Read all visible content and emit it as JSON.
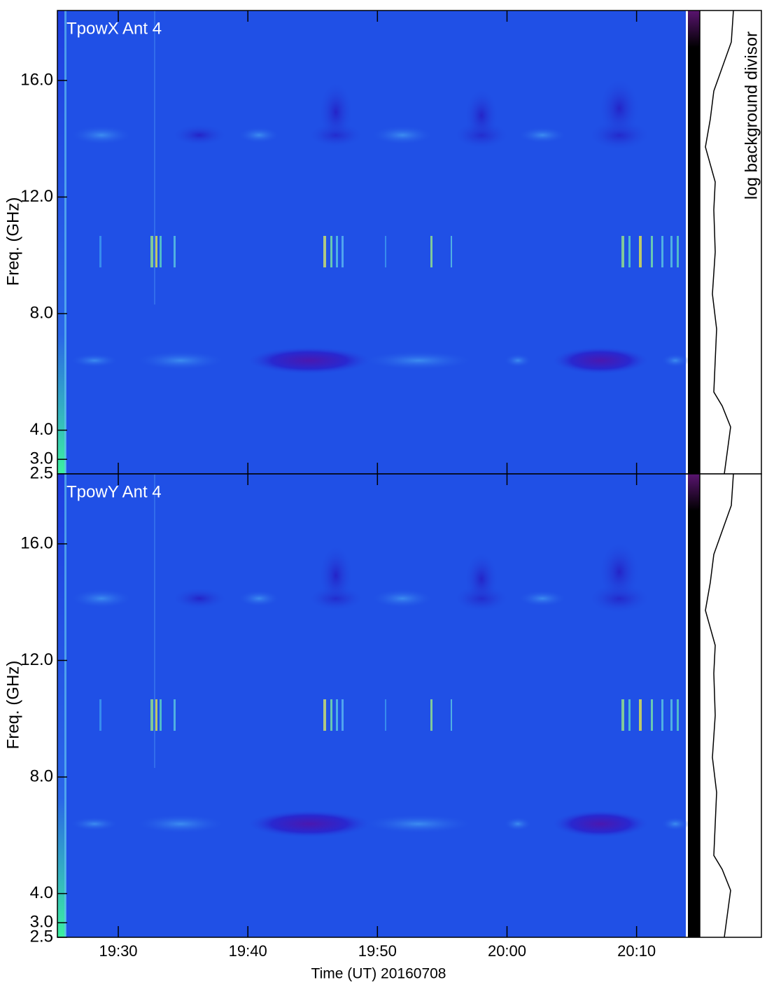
{
  "chart_data": [
    {
      "type": "spectrogram",
      "title": "TpowX Ant 4",
      "ylabel": "Freq. (GHz)",
      "side_label": "log background divisor",
      "ylim": [
        2.5,
        18.4
      ],
      "yticks": [
        {
          "value": 2.5,
          "label": "2.5"
        },
        {
          "value": 3,
          "label": "3.0"
        },
        {
          "value": 4,
          "label": "4.0"
        },
        {
          "value": 8,
          "label": "8.0"
        },
        {
          "value": 12,
          "label": "12.0"
        },
        {
          "value": 16,
          "label": "16.0"
        }
      ]
    },
    {
      "type": "spectrogram",
      "title": "TpowY Ant 4",
      "ylabel": "Freq. (GHz)",
      "xlabel": "Time (UT) 20160708",
      "ylim": [
        2.5,
        18.4
      ],
      "yticks": [
        {
          "value": 2.5,
          "label": "2.5"
        },
        {
          "value": 3,
          "label": "3.0"
        },
        {
          "value": 4,
          "label": "4.0"
        },
        {
          "value": 8,
          "label": "8.0"
        },
        {
          "value": 12,
          "label": "12.0"
        },
        {
          "value": 16,
          "label": "16.0"
        }
      ],
      "xlim": [
        1165.3,
        1213.8
      ],
      "xticks": [
        {
          "value": 1170,
          "label": "19:30"
        },
        {
          "value": 1180,
          "label": "19:40"
        },
        {
          "value": 1190,
          "label": "19:50"
        },
        {
          "value": 1200,
          "label": "20:00"
        },
        {
          "value": 1210,
          "label": "20:10"
        }
      ]
    }
  ]
}
